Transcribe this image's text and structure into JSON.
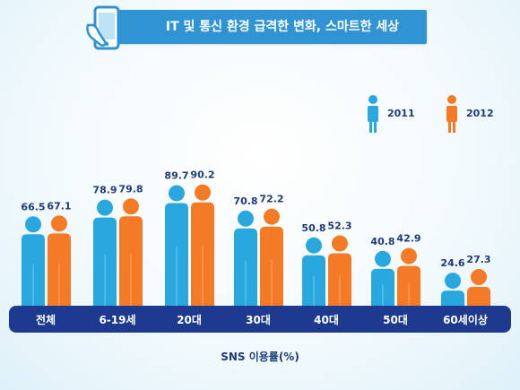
{
  "title": "IT 및 통신 환경 급격한 변화, 스마트한 세상",
  "chart_data": {
    "type": "bar",
    "categories": [
      "전체",
      "6-19세",
      "20대",
      "30대",
      "40대",
      "50대",
      "60세이상"
    ],
    "series": [
      {
        "name": "2011",
        "color": "#29a8e0",
        "values": [
          66.5,
          78.9,
          89.7,
          70.8,
          50.8,
          40.8,
          24.6
        ]
      },
      {
        "name": "2012",
        "color": "#f47a25",
        "values": [
          67.1,
          79.8,
          90.2,
          72.2,
          52.3,
          42.9,
          27.3
        ]
      }
    ],
    "xlabel": "SNS 이용률(%)",
    "ylabel": "",
    "legend_position": "top-right",
    "value_labels": true,
    "category_bar_color": "#1d3a8f"
  }
}
